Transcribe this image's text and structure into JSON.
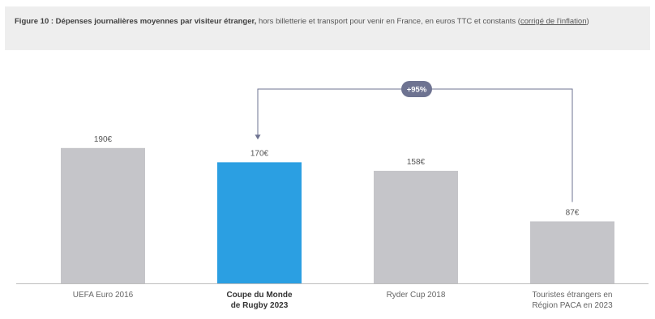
{
  "figure": {
    "title": "Figure 10 : Dépenses journalières moyennes par visiteur étranger,",
    "subtitle_part1": " hors billetterie et transport pour venir en France, en euros TTC et constants (",
    "subtitle_link": "corrigé de l'inflation",
    "subtitle_part2": ")"
  },
  "chart_data": {
    "type": "bar",
    "categories": [
      [
        "UEFA Euro 2016"
      ],
      [
        "Coupe du Monde",
        "de Rugby 2023"
      ],
      [
        "Ryder Cup 2018"
      ],
      [
        "Touristes étrangers en",
        "Région PACA en 2023"
      ]
    ],
    "values": [
      190,
      170,
      158,
      87
    ],
    "value_labels": [
      "190€",
      "170€",
      "158€",
      "87€"
    ],
    "highlight_index": 1,
    "ylim": [
      0,
      200
    ],
    "grid": false,
    "colors": {
      "default": "#c5c5c9",
      "highlight": "#2b9fe2",
      "badge": "#6e7391",
      "connector": "#6e7391",
      "axis": "#bdbdbd"
    },
    "annotation": {
      "label": "+95%",
      "from_index": 3,
      "to_index": 1
    }
  }
}
